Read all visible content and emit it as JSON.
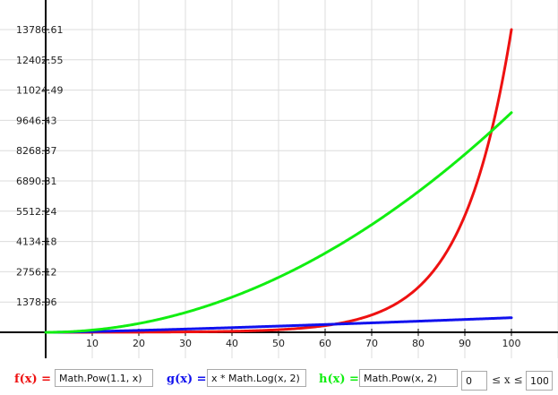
{
  "colors": {
    "f": "#ee1111",
    "g": "#1111ee",
    "h": "#11ee11",
    "grid": "#dcdcdc",
    "axis": "#000000"
  },
  "functions": {
    "f_label": "f(x) =",
    "f_expr": "Math.Pow(1.1, x)",
    "g_label": "g(x) =",
    "g_expr": "x * Math.Log(x, 2)",
    "h_label": "h(x) =",
    "h_expr": "Math.Pow(x, 2)"
  },
  "range": {
    "min": "0",
    "separator": "≤ x ≤",
    "max": "100"
  },
  "chart_data": {
    "type": "line",
    "title": "",
    "xlabel": "",
    "ylabel": "",
    "x_range": [
      0,
      100
    ],
    "ylim": [
      0,
      13780.61
    ],
    "grid": true,
    "x_ticks": [
      "10",
      "20",
      "30",
      "40",
      "50",
      "60",
      "70",
      "80",
      "90",
      "100"
    ],
    "y_ticks": [
      "1378.06",
      "2756.12",
      "4134.18",
      "5512.24",
      "6890.31",
      "8268.37",
      "9646.43",
      "11024.49",
      "12402.55",
      "13780.61"
    ],
    "series": [
      {
        "expr": "Math.Pow(1.1, x)",
        "color": "#ee1111"
      },
      {
        "expr": "x * Math.Log(x, 2)",
        "color": "#1111ee"
      },
      {
        "expr": "Math.Pow(x, 2)",
        "color": "#11ee11"
      }
    ]
  }
}
